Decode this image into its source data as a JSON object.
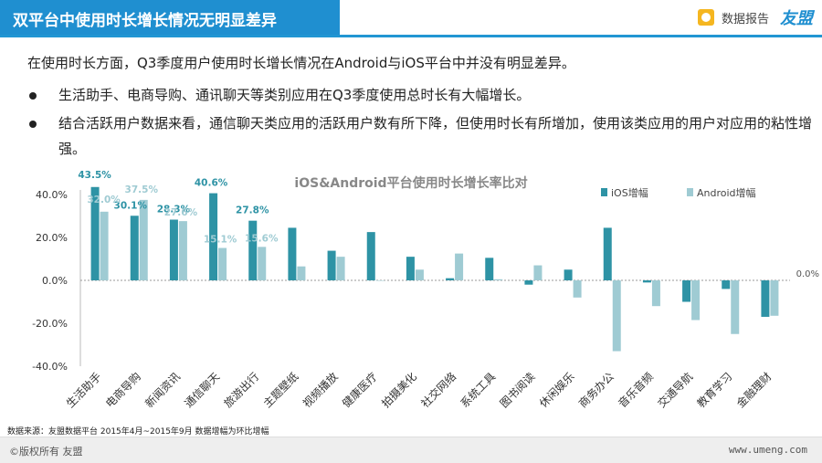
{
  "header": {
    "title": "双平台中使用时长增长情况无明显差异",
    "report_label": "数据报告",
    "logo_text": "友盟",
    "icon": "report-icon"
  },
  "intro": "在使用时长方面，Q3季度用户使用时长增长情况在Android与iOS平台中并没有明显差异。",
  "bullets": [
    "生活助手、电商导购、通讯聊天等类别应用在Q3季度使用总时长有大幅增长。",
    "结合活跃用户数据来看，通信聊天类应用的活跃用户数有所下降，但使用时长有所增加，使用该类应用的用户对应用的粘性增强。"
  ],
  "chart_data": {
    "type": "bar",
    "title": "iOS&Android平台使用时长增长率比对",
    "categories": [
      "生活助手",
      "电商导购",
      "新闻资讯",
      "通信聊天",
      "旅游出行",
      "主题壁纸",
      "视频播放",
      "健康医疗",
      "拍摄美化",
      "社交网络",
      "系统工具",
      "图书阅读",
      "休闲娱乐",
      "商务办公",
      "音乐音频",
      "交通导航",
      "教育学习",
      "金融理财"
    ],
    "series": [
      {
        "name": "iOS增幅",
        "color": "#2e93a5",
        "values": [
          43.5,
          30.1,
          28.3,
          40.6,
          27.8,
          24.5,
          13.8,
          22.5,
          11.0,
          1.0,
          10.5,
          -2.0,
          5.0,
          24.5,
          -1.0,
          -10.0,
          -4.0,
          -17.0
        ]
      },
      {
        "name": "Android增幅",
        "color": "#9fcbd3",
        "values": [
          32.0,
          37.5,
          27.6,
          15.1,
          15.6,
          6.5,
          11.0,
          0.0,
          5.0,
          12.5,
          0.5,
          7.0,
          -8.0,
          -33.0,
          -12.0,
          -18.5,
          -25.0,
          -16.5
        ]
      }
    ],
    "data_labels": {
      "iOS增幅": [
        "43.5%",
        "30.1%",
        "28.3%",
        "40.6%",
        "27.8%"
      ],
      "Android增幅": [
        "32.0%",
        "37.5%",
        "27.6%",
        "15.1%",
        "15.6%"
      ]
    },
    "y_ticks": [
      "40.0%",
      "20.0%",
      "0.0%",
      "-20.0%",
      "-40.0%"
    ],
    "ylim": [
      -40,
      40
    ],
    "zero_annotation": "0.0%",
    "legend_position": "top-right",
    "grid": false
  },
  "source": "数据来源：友盟数据平台  2015年4月~2015年9月  数据增幅为环比增幅",
  "footer": {
    "copyright": "©版权所有  友盟",
    "website": "www.umeng.com"
  }
}
